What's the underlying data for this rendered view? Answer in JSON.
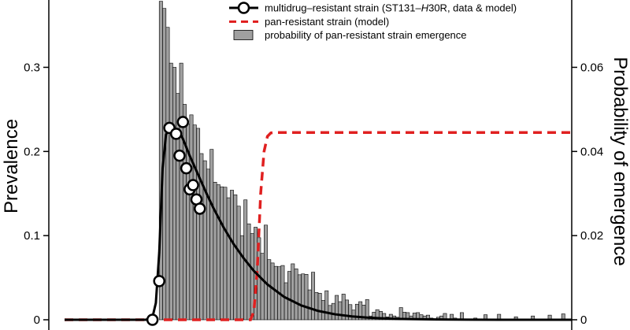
{
  "chart_data": {
    "type": "combo",
    "ylabel": "Prevalence",
    "y2label": "Probability of emergence",
    "ylim": [
      0,
      0.38
    ],
    "y2lim": [
      0,
      0.076
    ],
    "yticks": [
      0,
      0.1,
      0.2,
      0.3
    ],
    "ytick_labels": [
      "0",
      "0.1",
      "0.2",
      "0.3"
    ],
    "y2ticks": [
      0,
      0.02,
      0.04,
      0.06
    ],
    "y2tick_labels": [
      "0",
      "0.02",
      "0.04",
      "0.06"
    ],
    "xlim": [
      0,
      150
    ],
    "legend_position": "top-right",
    "series": [
      {
        "name": "multidrug-resistant strain (ST131-H30R, data & model)",
        "legend_parts": [
          "multidrug–resistant strain (ST131–",
          "H",
          "30R, data & model)"
        ],
        "kind": "line+markers",
        "color": "#000000",
        "x": [
          0,
          5,
          10,
          15,
          20,
          24,
          26,
          27,
          28,
          29,
          30,
          31,
          32,
          33,
          34,
          35,
          36,
          37,
          38,
          39,
          40,
          42,
          44,
          47,
          50,
          53,
          56,
          60,
          65,
          70,
          75,
          80,
          85,
          90,
          95,
          100,
          110,
          120,
          130,
          140,
          150
        ],
        "y": [
          0,
          0,
          0,
          0,
          0,
          0,
          0.003,
          0.02,
          0.08,
          0.18,
          0.22,
          0.228,
          0.228,
          0.226,
          0.223,
          0.215,
          0.205,
          0.195,
          0.186,
          0.177,
          0.168,
          0.15,
          0.133,
          0.11,
          0.09,
          0.073,
          0.058,
          0.042,
          0.027,
          0.017,
          0.0105,
          0.0065,
          0.004,
          0.0025,
          0.0015,
          0.0009,
          0.0003,
          0.0001,
          0,
          0,
          0
        ],
        "markers_x": [
          26,
          28,
          31,
          33,
          34,
          35,
          36,
          37,
          38,
          39,
          40
        ],
        "markers_y": [
          0,
          0.046,
          0.228,
          0.221,
          0.195,
          0.235,
          0.18,
          0.155,
          0.16,
          0.143,
          0.132
        ]
      },
      {
        "name": "pan-resistant strain (model)",
        "kind": "dashed-line",
        "color": "#e02020",
        "x": [
          0,
          5,
          10,
          15,
          20,
          25,
          30,
          35,
          40,
          45,
          50,
          55,
          56,
          57,
          58,
          59,
          60,
          61,
          62,
          65,
          70,
          80,
          100,
          120,
          150
        ],
        "y": [
          0,
          0,
          0,
          0,
          0,
          0,
          0,
          0,
          0,
          0,
          0,
          0,
          0.01,
          0.06,
          0.15,
          0.2,
          0.218,
          0.222,
          0.2225,
          0.2225,
          0.2225,
          0.2225,
          0.2225,
          0.2225,
          0.2225
        ]
      },
      {
        "name": "probability of pan-resistant strain emergence",
        "kind": "histogram",
        "color": "#a0a0a0",
        "bin_start": 28,
        "bin_width": 1,
        "values": [
          0.0757,
          0.074,
          0.0695,
          0.061,
          0.06,
          0.0538,
          0.061,
          0.0512,
          0.0465,
          0.0487,
          0.0463,
          0.0455,
          0.0395,
          0.0378,
          0.0358,
          0.0405,
          0.0327,
          0.0321,
          0.0316,
          0.0315,
          0.029,
          0.0308,
          0.0297,
          0.027,
          0.02,
          0.0285,
          0.0228,
          0.0205,
          0.022,
          0.0195,
          0.0158,
          0.0225,
          0.0143,
          0.0135,
          0.0127,
          0.0126,
          0.0129,
          0.0088,
          0.0115,
          0.0133,
          0.0121,
          0.0107,
          0.0109,
          0.0108,
          0.0071,
          0.0113,
          0.0065,
          0.0063,
          0.0046,
          0.0069,
          0.0034,
          0.0039,
          0.0058,
          0.0043,
          0.0061,
          0.0047,
          0.0036,
          0.0023,
          0.0037,
          0.0043,
          0.0035,
          0.0048,
          0.0009,
          0.0018,
          0.0024,
          0.002,
          0.0015,
          0.0007,
          0.0013,
          0.0009,
          0.0006,
          0.0029,
          0.0018,
          0.0017,
          0.0009,
          0.0016,
          0.0017,
          0.0012,
          0.0009,
          0.0011,
          0.0004,
          0.0,
          0.0006,
          0.0009,
          0.0015,
          0.0,
          0.0013,
          0.0004,
          0.0,
          0.0017,
          0.0,
          0.0,
          0.0,
          0.0004,
          0.0,
          0.0,
          0.0012,
          0.0,
          0.0,
          0.0,
          0.0013,
          0.0,
          0.0,
          0.0,
          0.0,
          0.0007,
          0.0,
          0.0,
          0.0,
          0.0,
          0.0009,
          0.0,
          0.0,
          0.0,
          0.0,
          0.0011,
          0.0,
          0.0,
          0.0,
          0.0014
        ]
      }
    ]
  }
}
